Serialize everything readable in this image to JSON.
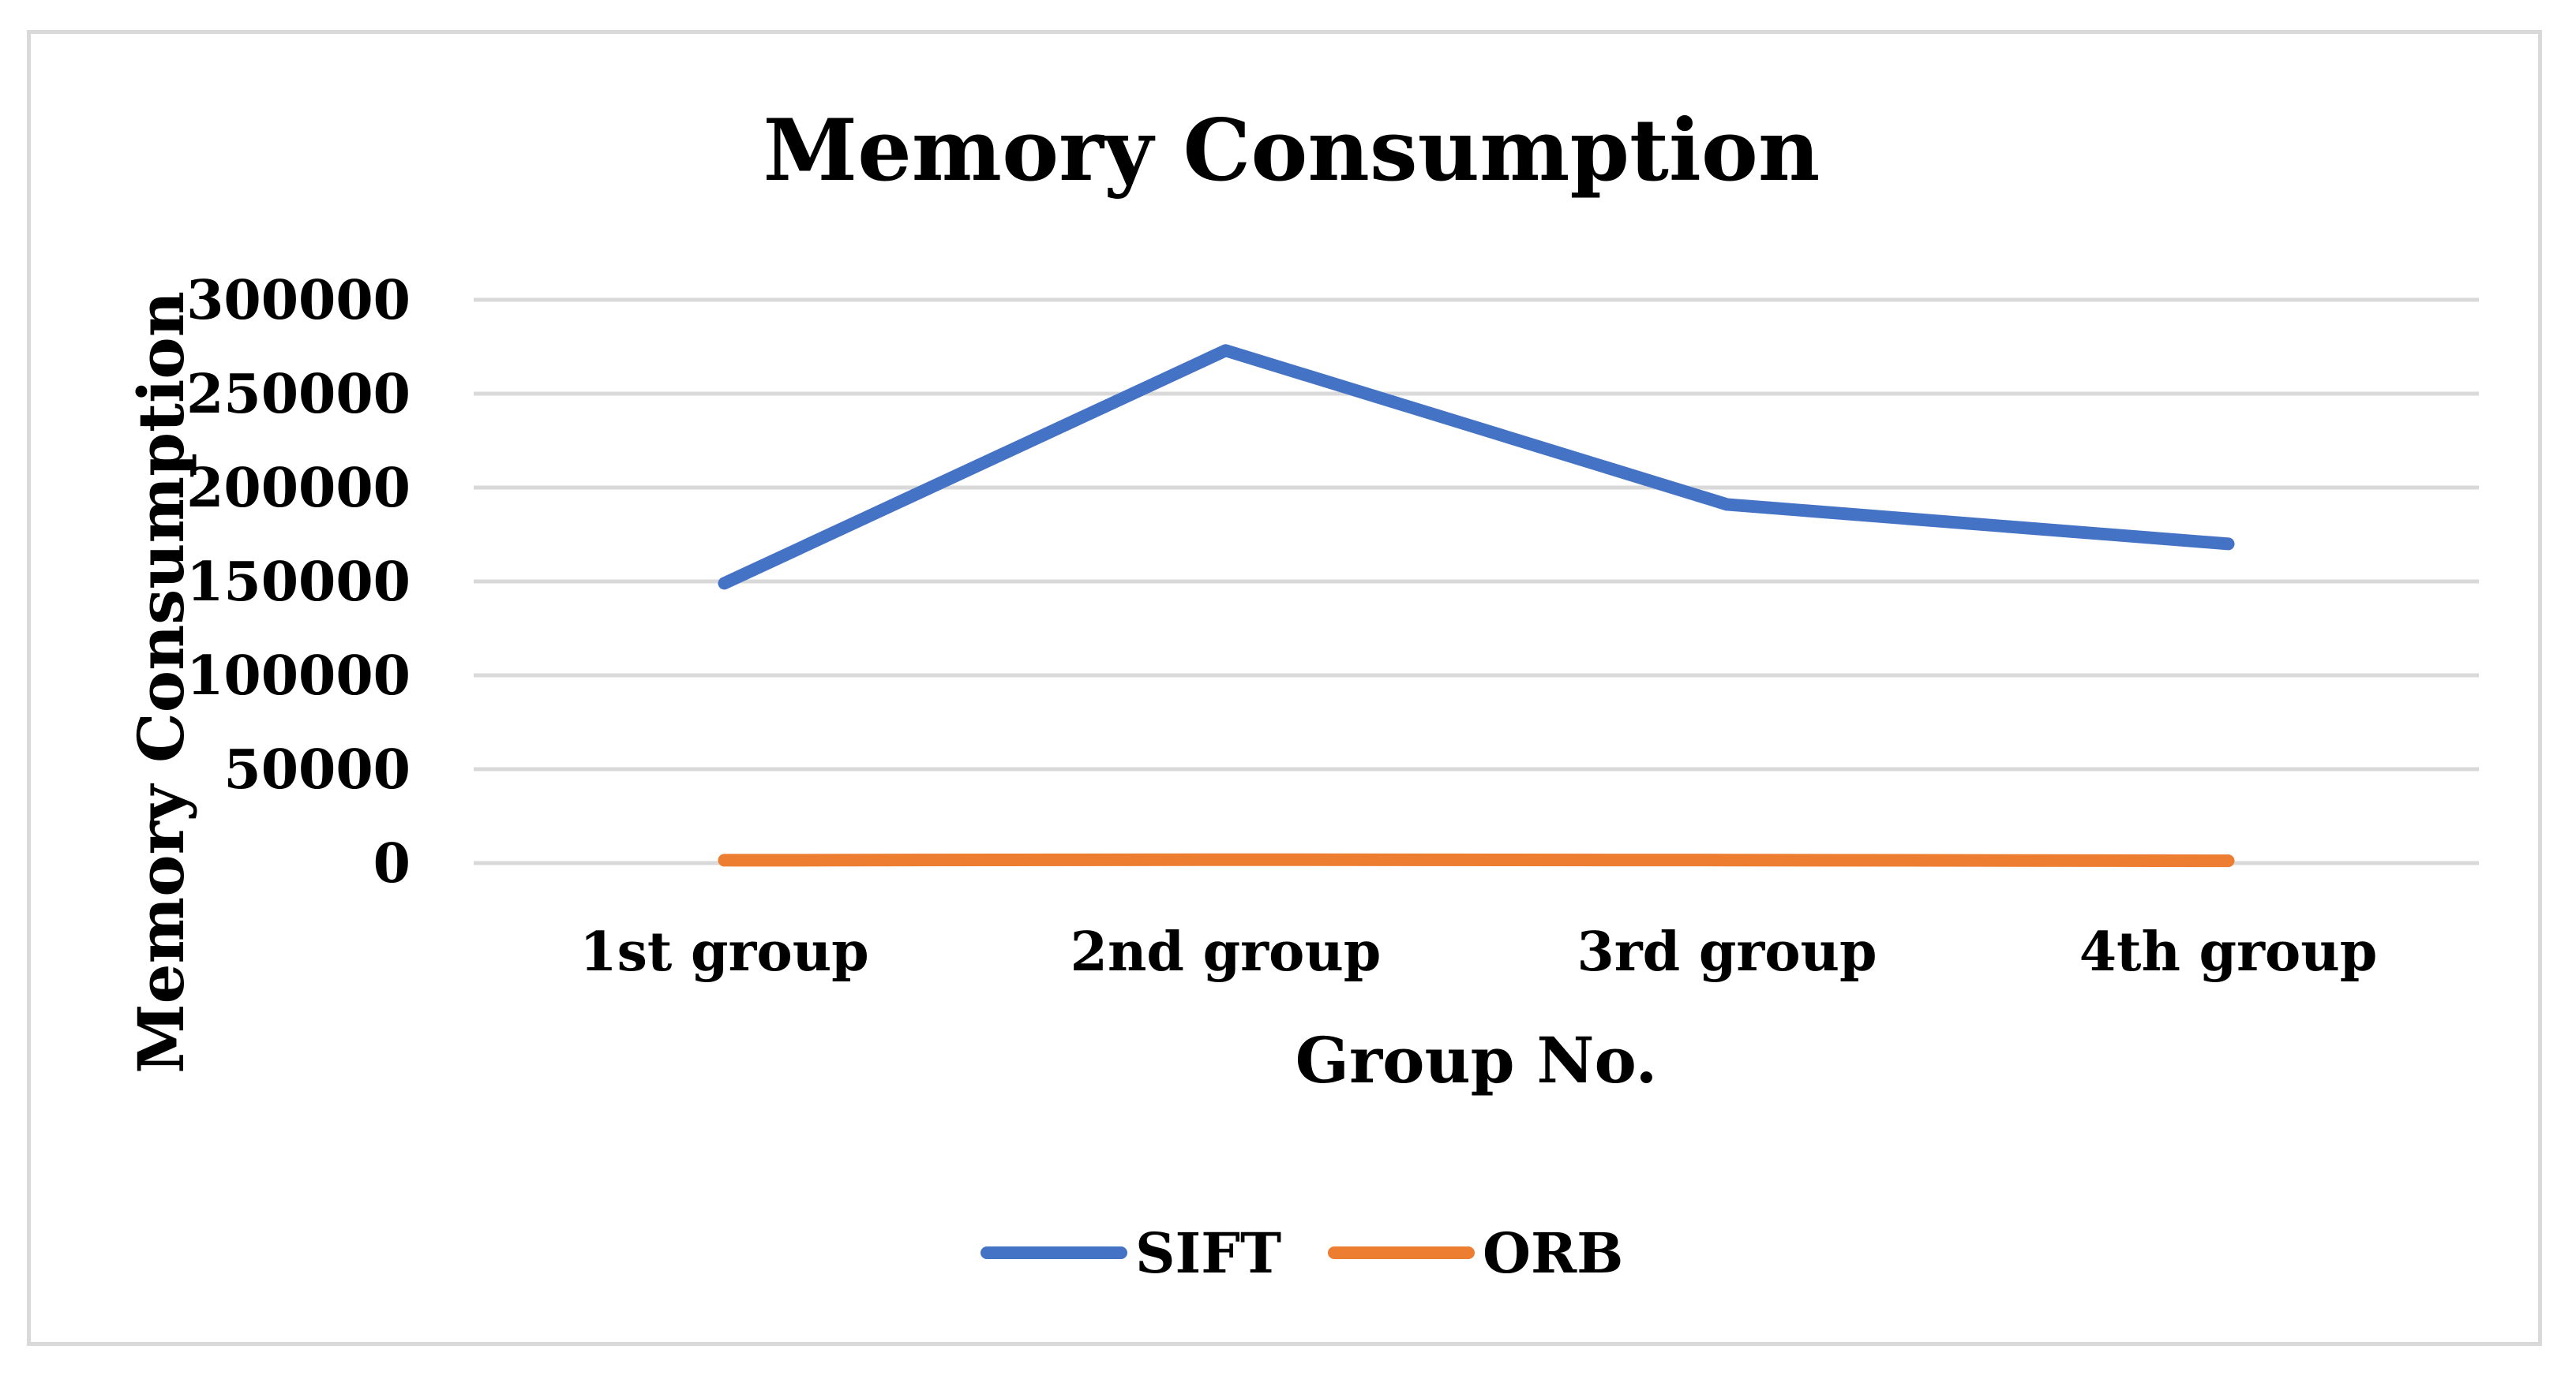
{
  "chart_data": {
    "type": "line",
    "title": "Memory Consumption",
    "xlabel": "Group No.",
    "ylabel": "Memory Consumption",
    "categories": [
      "1st group",
      "2nd group",
      "3rd group",
      "4th group"
    ],
    "ylim": [
      0,
      300000
    ],
    "yticks": [
      "0",
      "50000",
      "100000",
      "150000",
      "200000",
      "250000",
      "300000"
    ],
    "grid": true,
    "legend_position": "bottom",
    "series": [
      {
        "name": "SIFT",
        "color": "#4472c4",
        "values": [
          149000,
          273000,
          191000,
          170000
        ]
      },
      {
        "name": "ORB",
        "color": "#ed7d31",
        "values": [
          1500,
          1800,
          1600,
          1200
        ]
      }
    ]
  }
}
